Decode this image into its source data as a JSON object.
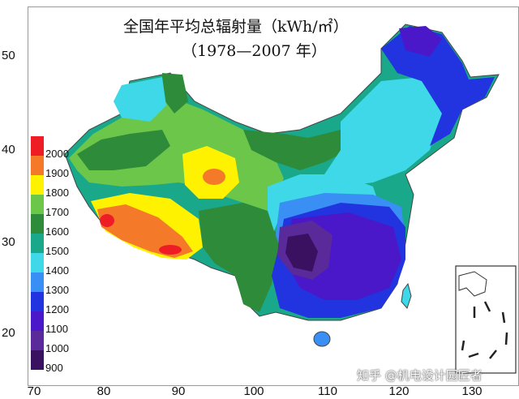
{
  "map": {
    "title": "全国年平均总辐射量（kWh/㎡）",
    "subtitle": "（1978—2007 年）",
    "y_ticks": [
      "50",
      "40",
      "30",
      "20"
    ],
    "x_ticks": [
      "70",
      "80",
      "90",
      "100",
      "110",
      "120",
      "130"
    ],
    "legend": [
      {
        "label": "2000",
        "color": "#ee1c24"
      },
      {
        "label": "1900",
        "color": "#f47a2a"
      },
      {
        "label": "1800",
        "color": "#fff200"
      },
      {
        "label": "1700",
        "color": "#6cc64a"
      },
      {
        "label": "1600",
        "color": "#2e8b3a"
      },
      {
        "label": "1500",
        "color": "#1aa88a"
      },
      {
        "label": "1400",
        "color": "#3ed8e8"
      },
      {
        "label": "1300",
        "color": "#3a8ff5"
      },
      {
        "label": "1200",
        "color": "#2233e0"
      },
      {
        "label": "1100",
        "color": "#4a18c8"
      },
      {
        "label": "1000",
        "color": "#5a2a9a"
      },
      {
        "label": "900",
        "color": "#3a1060"
      }
    ],
    "watermark": "知乎 @机电设计园匠者"
  }
}
